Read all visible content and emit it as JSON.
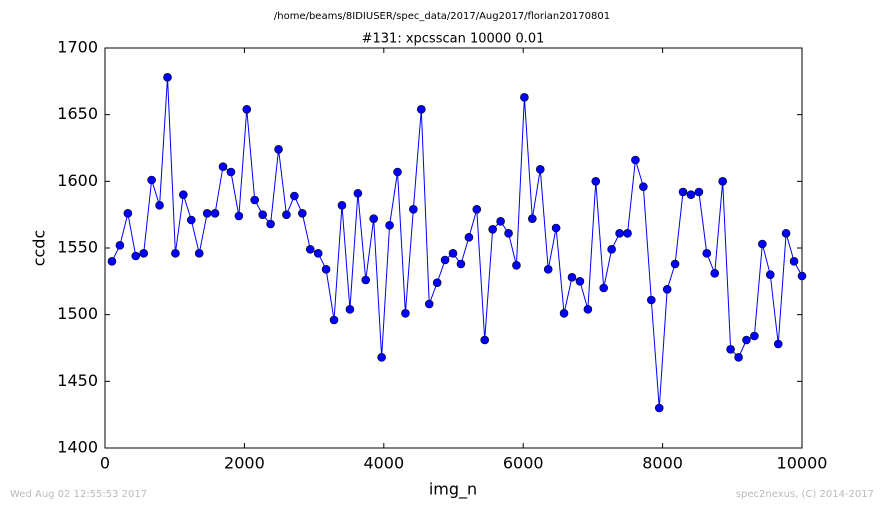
{
  "chart_data": {
    "type": "line",
    "suptitle": "/home/beams/8IDIUSER/spec_data/2017/Aug2017/florian20170801",
    "title": "#131: xpcsscan 10000 0.01",
    "xlabel": "img_n",
    "ylabel": "ccdc",
    "footer_left": "Wed Aug 02 12:55:53 2017",
    "footer_right": "spec2nexus, (C) 2014-2017",
    "xlim": [
      0,
      10000
    ],
    "xticks": [
      0,
      2000,
      4000,
      6000,
      8000,
      10000
    ],
    "ylim": [
      1400,
      1700
    ],
    "yticks": [
      1400,
      1450,
      1500,
      1550,
      1600,
      1650,
      1700
    ],
    "grid": false,
    "x": [
      100,
      214,
      328,
      441,
      555,
      669,
      783,
      897,
      1010,
      1124,
      1238,
      1352,
      1466,
      1579,
      1693,
      1807,
      1921,
      2034,
      2148,
      2262,
      2376,
      2490,
      2603,
      2717,
      2831,
      2945,
      3059,
      3172,
      3286,
      3400,
      3514,
      3628,
      3741,
      3855,
      3969,
      4083,
      4197,
      4310,
      4424,
      4538,
      4652,
      4766,
      4879,
      4993,
      5107,
      5221,
      5334,
      5448,
      5562,
      5676,
      5790,
      5903,
      6017,
      6131,
      6245,
      6359,
      6472,
      6586,
      6700,
      6814,
      6928,
      7041,
      7155,
      7269,
      7383,
      7497,
      7610,
      7724,
      7838,
      7952,
      8066,
      8179,
      8293,
      8407,
      8521,
      8634,
      8748,
      8862,
      8976,
      9090,
      9203,
      9317,
      9431,
      9545,
      9659,
      9772,
      9886,
      10000
    ],
    "series": [
      {
        "color": "#0000ff",
        "values": [
          1540,
          1552,
          1576,
          1544,
          1546,
          1601,
          1582,
          1678,
          1546,
          1590,
          1571,
          1546,
          1576,
          1576,
          1611,
          1607,
          1574,
          1654,
          1586,
          1575,
          1568,
          1624,
          1575,
          1589,
          1576,
          1549,
          1546,
          1534,
          1496,
          1582,
          1504,
          1591,
          1526,
          1572,
          1468,
          1567,
          1607,
          1501,
          1579,
          1654,
          1508,
          1524,
          1541,
          1546,
          1538,
          1558,
          1579,
          1481,
          1564,
          1570,
          1561,
          1537,
          1663,
          1572,
          1609,
          1534,
          1565,
          1501,
          1528,
          1525,
          1504,
          1600,
          1520,
          1549,
          1561,
          1561,
          1616,
          1596,
          1511,
          1430,
          1519,
          1538,
          1592,
          1590,
          1592,
          1546,
          1531,
          1600,
          1474,
          1468,
          1481,
          1484,
          1553,
          1530,
          1478,
          1561,
          1540,
          1529
        ]
      }
    ]
  }
}
